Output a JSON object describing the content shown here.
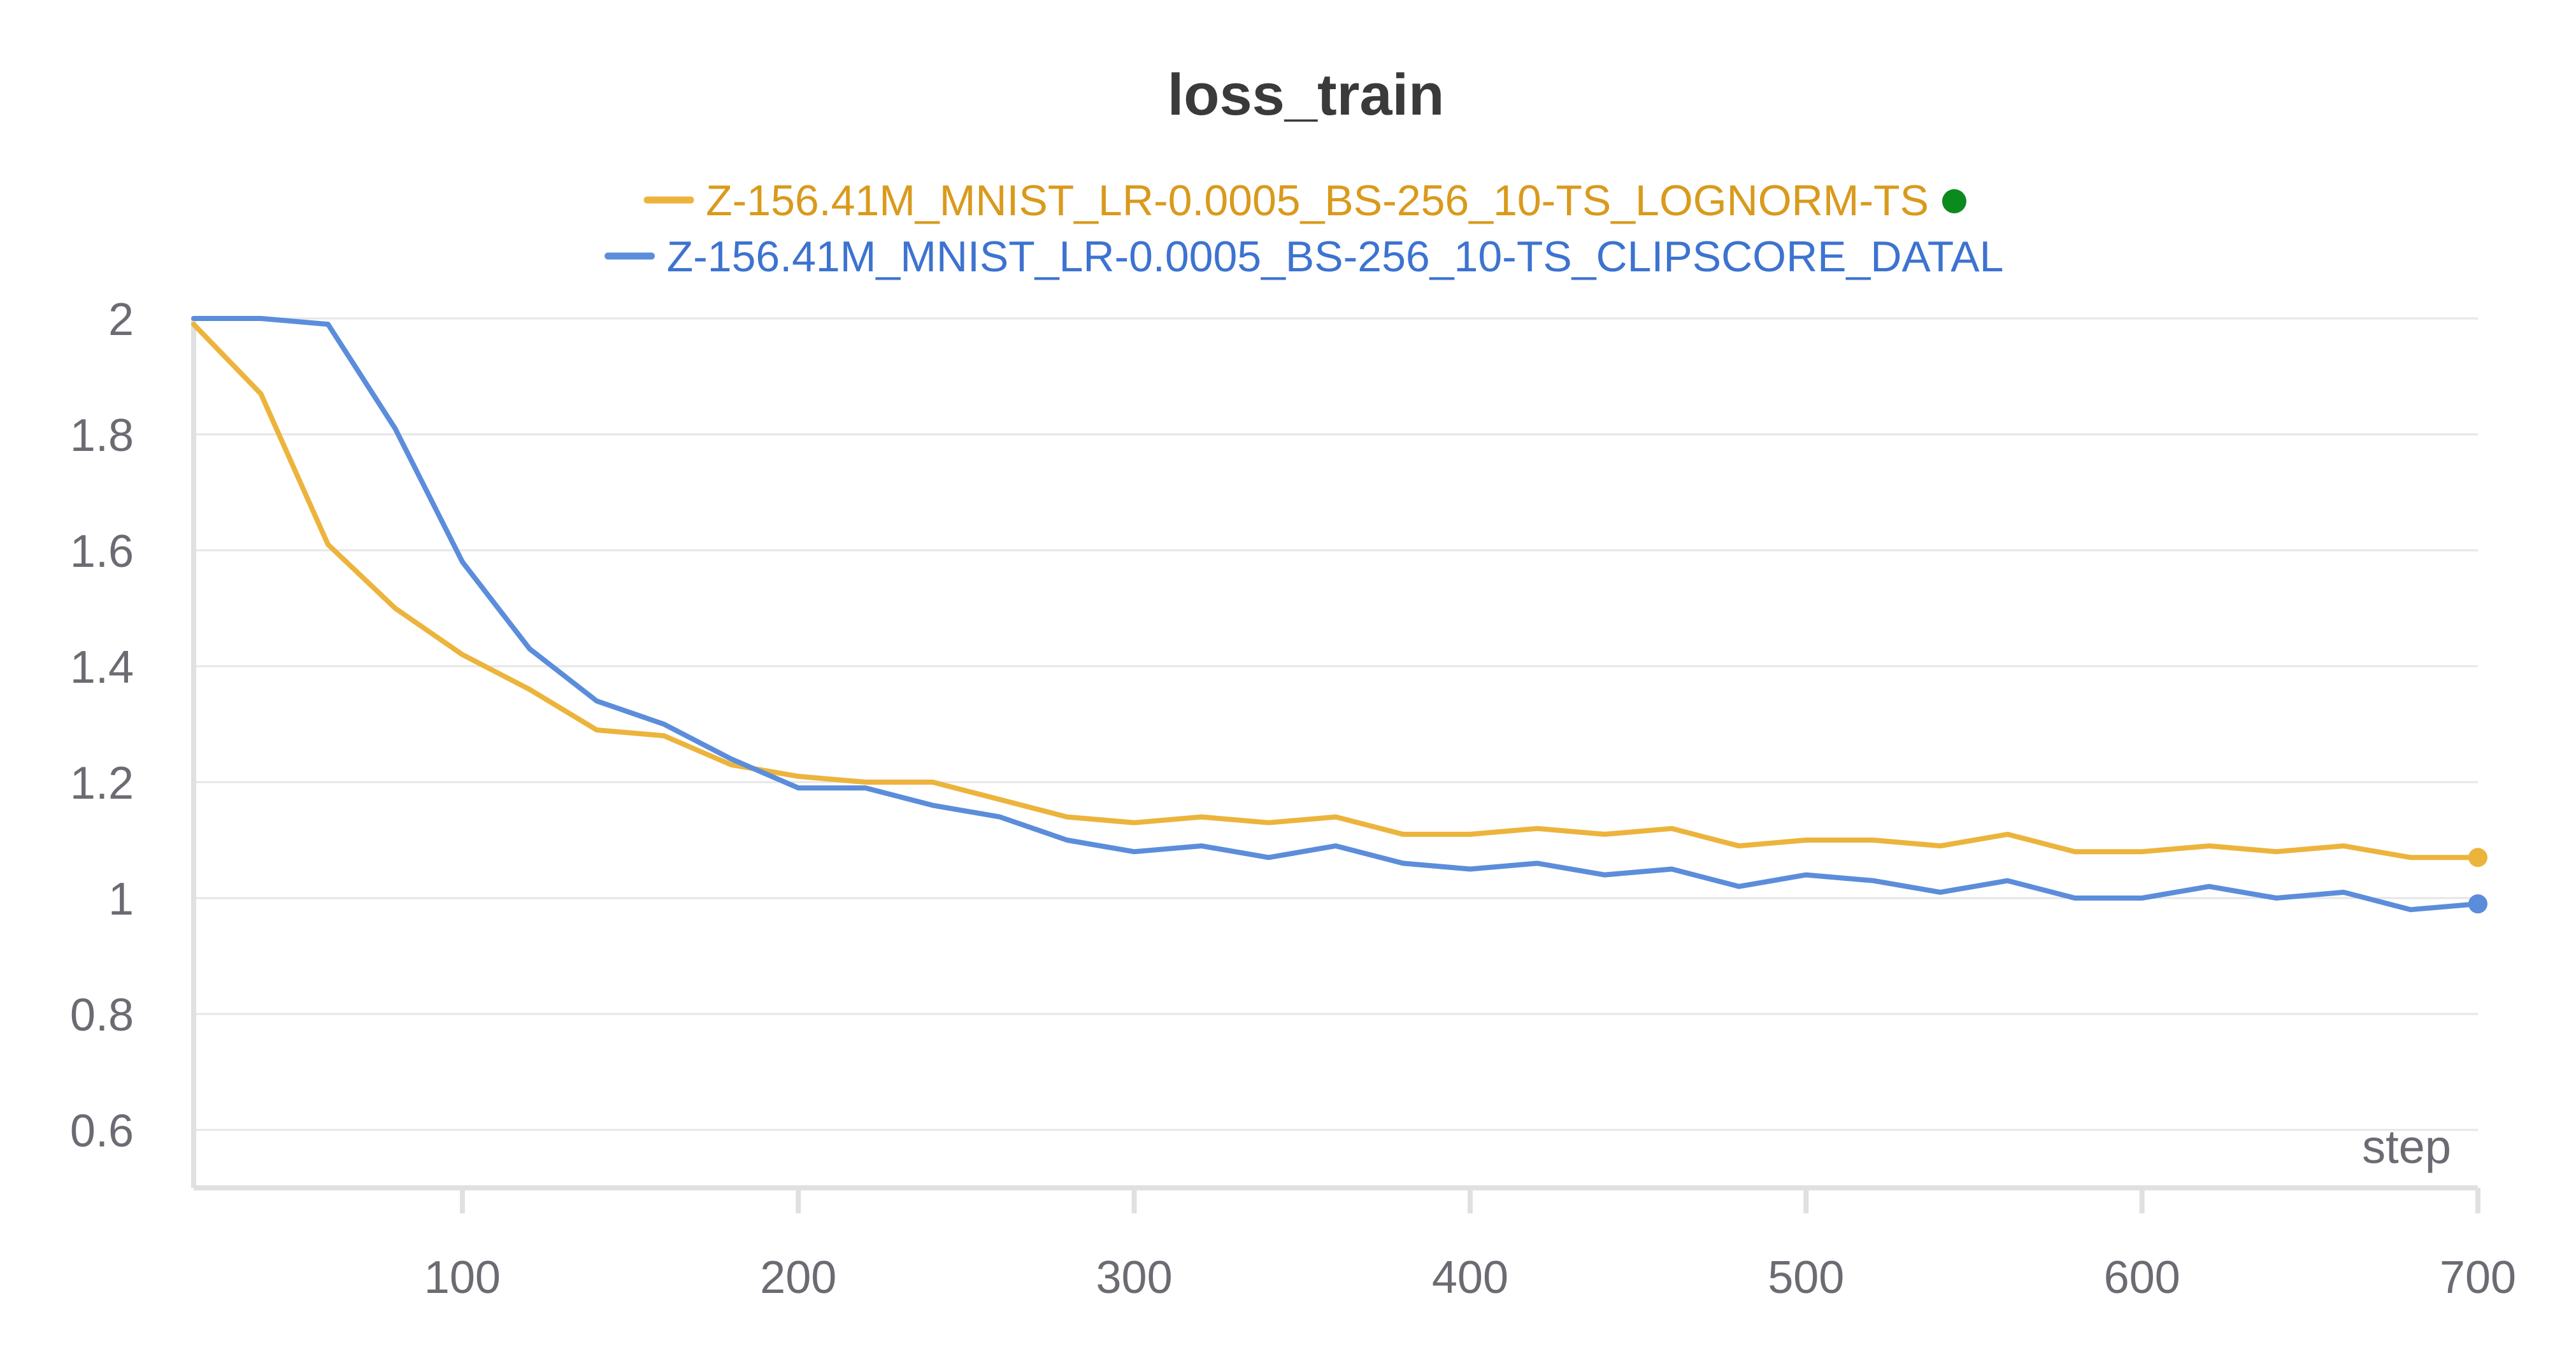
{
  "chart_data": {
    "type": "line",
    "title": "loss_train",
    "xlabel": "step",
    "ylabel": "",
    "xlim": [
      20,
      700
    ],
    "ylim": [
      0.5,
      2.0
    ],
    "x_ticks": [
      100,
      200,
      300,
      400,
      500,
      600,
      700
    ],
    "y_ticks": [
      0.6,
      0.8,
      1,
      1.2,
      1.4,
      1.6,
      1.8,
      2
    ],
    "grid": true,
    "legend_position": "top-center",
    "series": [
      {
        "name": "Z-156.41M_MNIST_LR-0.0005_BS-256_10-TS_LOGNORM-TS",
        "color": "#ECB43C",
        "label_color": "#D99A1C",
        "marker_after_label": "#0B8A1E",
        "x": [
          20,
          40,
          60,
          80,
          100,
          120,
          140,
          160,
          180,
          200,
          220,
          240,
          260,
          280,
          300,
          320,
          340,
          360,
          380,
          400,
          420,
          440,
          460,
          480,
          500,
          520,
          540,
          560,
          580,
          600,
          620,
          640,
          660,
          680,
          700
        ],
        "y": [
          1.99,
          1.87,
          1.61,
          1.5,
          1.42,
          1.36,
          1.29,
          1.28,
          1.23,
          1.21,
          1.2,
          1.2,
          1.17,
          1.14,
          1.13,
          1.14,
          1.13,
          1.14,
          1.11,
          1.11,
          1.12,
          1.11,
          1.12,
          1.09,
          1.1,
          1.1,
          1.09,
          1.11,
          1.08,
          1.08,
          1.09,
          1.08,
          1.09,
          1.07,
          1.07
        ]
      },
      {
        "name": "Z-156.41M_MNIST_LR-0.0005_BS-256_10-TS_CLIPSCORE_DATAL",
        "color": "#5B8DDB",
        "label_color": "#3D73D0",
        "x": [
          20,
          40,
          60,
          80,
          100,
          120,
          140,
          160,
          180,
          200,
          220,
          240,
          260,
          280,
          300,
          320,
          340,
          360,
          380,
          400,
          420,
          440,
          460,
          480,
          500,
          520,
          540,
          560,
          580,
          600,
          620,
          640,
          660,
          680,
          700
        ],
        "y": [
          2.0,
          2.0,
          1.99,
          1.81,
          1.58,
          1.43,
          1.34,
          1.3,
          1.24,
          1.19,
          1.19,
          1.16,
          1.14,
          1.1,
          1.08,
          1.09,
          1.07,
          1.09,
          1.06,
          1.05,
          1.06,
          1.04,
          1.05,
          1.02,
          1.04,
          1.03,
          1.01,
          1.03,
          1.0,
          1.0,
          1.02,
          1.0,
          1.01,
          0.98,
          0.99
        ]
      }
    ]
  }
}
